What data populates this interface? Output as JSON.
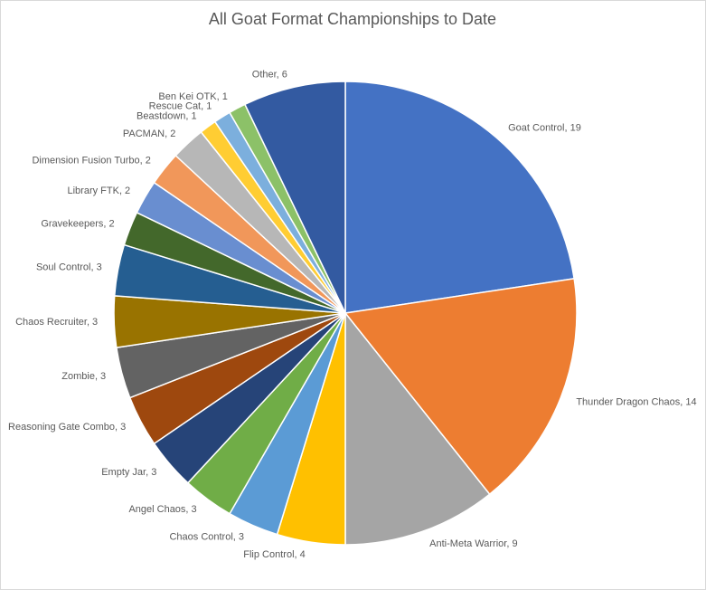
{
  "chart_data": {
    "type": "pie",
    "title": "All Goat Format Championships to Date",
    "values": [
      19,
      14,
      9,
      4,
      3,
      3,
      3,
      3,
      3,
      3,
      3,
      2,
      2,
      2,
      2,
      1,
      1,
      1,
      6
    ],
    "value_labels": [
      "Goat Control, 19",
      "Thunder Dragon Chaos, 14",
      "Anti-Meta Warrior, 9",
      "Flip Control, 4",
      "Chaos Control, 3",
      "Angel Chaos, 3",
      "Empty Jar, 3",
      "Reasoning Gate Combo, 3",
      "Zombie, 3",
      "Chaos Recruiter, 3",
      "Soul Control, 3",
      "Gravekeepers, 2",
      "Library FTK, 2",
      "Dimension Fusion Turbo, 2",
      "PACMAN, 2",
      "Beastdown, 1",
      "Rescue Cat, 1",
      "Ben Kei OTK, 1",
      "Other, 6"
    ],
    "colors": [
      "#4472c4",
      "#ed7d31",
      "#a5a5a5",
      "#ffc000",
      "#5b9bd5",
      "#70ad47",
      "#264478",
      "#9e480e",
      "#636363",
      "#997300",
      "#255e91",
      "#43682b",
      "#698ed0",
      "#f1975a",
      "#b7b7b7",
      "#ffcd33",
      "#7cafdd",
      "#8cc168",
      "#335aa1"
    ]
  }
}
